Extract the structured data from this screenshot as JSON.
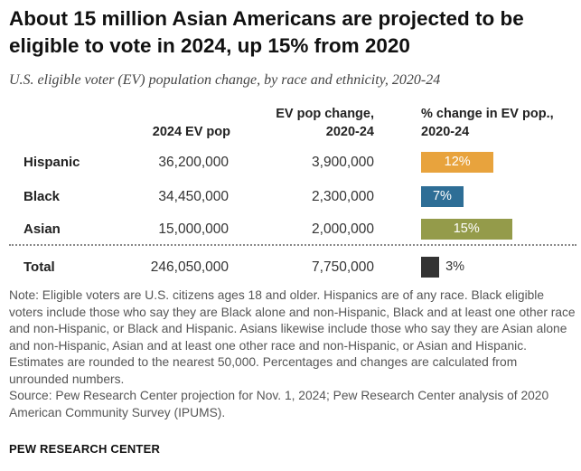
{
  "title": "About 15 million Asian Americans are projected to be eligible to vote in 2024, up 15% from 2020",
  "subtitle": "U.S. eligible voter (EV) population change, by race and ethnicity, 2020-24",
  "headers": {
    "col1": "2024 EV pop",
    "col2": "EV pop change, 2020-24",
    "col3": "% change in EV pop., 2020-24"
  },
  "chart_data": {
    "type": "table",
    "title": "About 15 million Asian Americans are projected to be eligible to vote in 2024, up 15% from 2020",
    "subtitle": "U.S. eligible voter (EV) population change, by race and ethnicity, 2020-24",
    "columns": [
      "",
      "2024 EV pop",
      "EV pop change, 2020-24",
      "% change in EV pop., 2020-24"
    ],
    "rows": [
      {
        "group": "Hispanic",
        "ev_pop": "36,200,000",
        "ev_change": "3,900,000",
        "pct_change": 12,
        "pct_label": "12%",
        "color": "#e8a33d"
      },
      {
        "group": "Black",
        "ev_pop": "34,450,000",
        "ev_change": "2,300,000",
        "pct_change": 7,
        "pct_label": "7%",
        "color": "#2e6e96"
      },
      {
        "group": "Asian",
        "ev_pop": "15,000,000",
        "ev_change": "2,000,000",
        "pct_change": 15,
        "pct_label": "15%",
        "color": "#949b4a"
      }
    ],
    "total": {
      "group": "Total",
      "ev_pop": "246,050,000",
      "ev_change": "7,750,000",
      "pct_change": 3,
      "pct_label": "3%",
      "color": "#333333"
    }
  },
  "note": "Note: Eligible voters are U.S. citizens ages 18 and older. Hispanics are of any race. Black eligible voters include those who say they are Black alone and non-Hispanic, Black and at least one other race and non-Hispanic, or Black and Hispanic. Asians likewise include those who say they are Asian alone and non-Hispanic, Asian and at least one other race and non-Hispanic, or Asian and Hispanic. Estimates are rounded to the nearest 50,000. Percentages and changes are calculated from unrounded numbers.",
  "source": "Source: Pew Research Center projection for Nov. 1, 2024; Pew Research Center analysis of 2020 American Community Survey (IPUMS).",
  "brand": "PEW RESEARCH CENTER"
}
